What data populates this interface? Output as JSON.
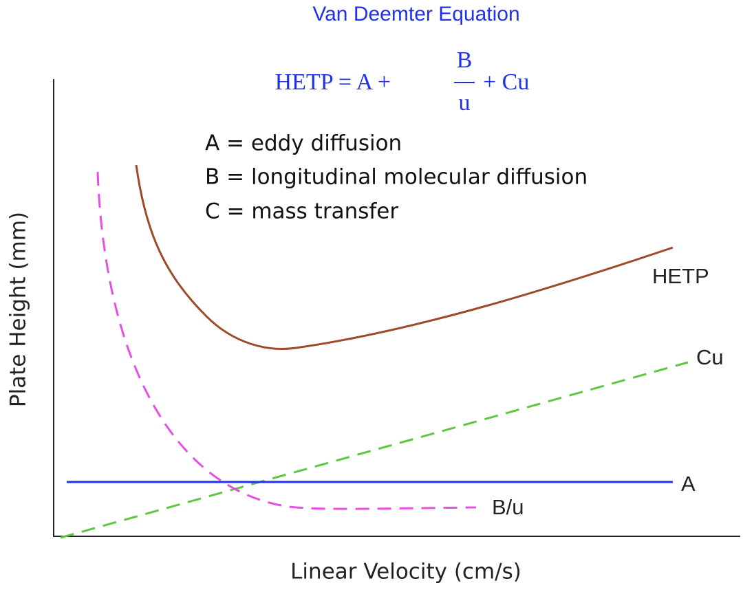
{
  "title": "Van Deemter Equation",
  "equation": {
    "lhs": "HETP = A +",
    "numerator": "B",
    "denominator": "u",
    "rhs": "+ Cu"
  },
  "definitions": [
    "A = eddy diffusion",
    "B = longitudinal molecular diffusion",
    "C = mass transfer"
  ],
  "curves": [
    {
      "label": "HETP"
    },
    {
      "label": "Cu"
    },
    {
      "label": "A"
    },
    {
      "label": "B/u"
    }
  ],
  "x_axis_label": "Linear Velocity (cm/s)",
  "y_axis_label": "Plate Height (mm)"
}
